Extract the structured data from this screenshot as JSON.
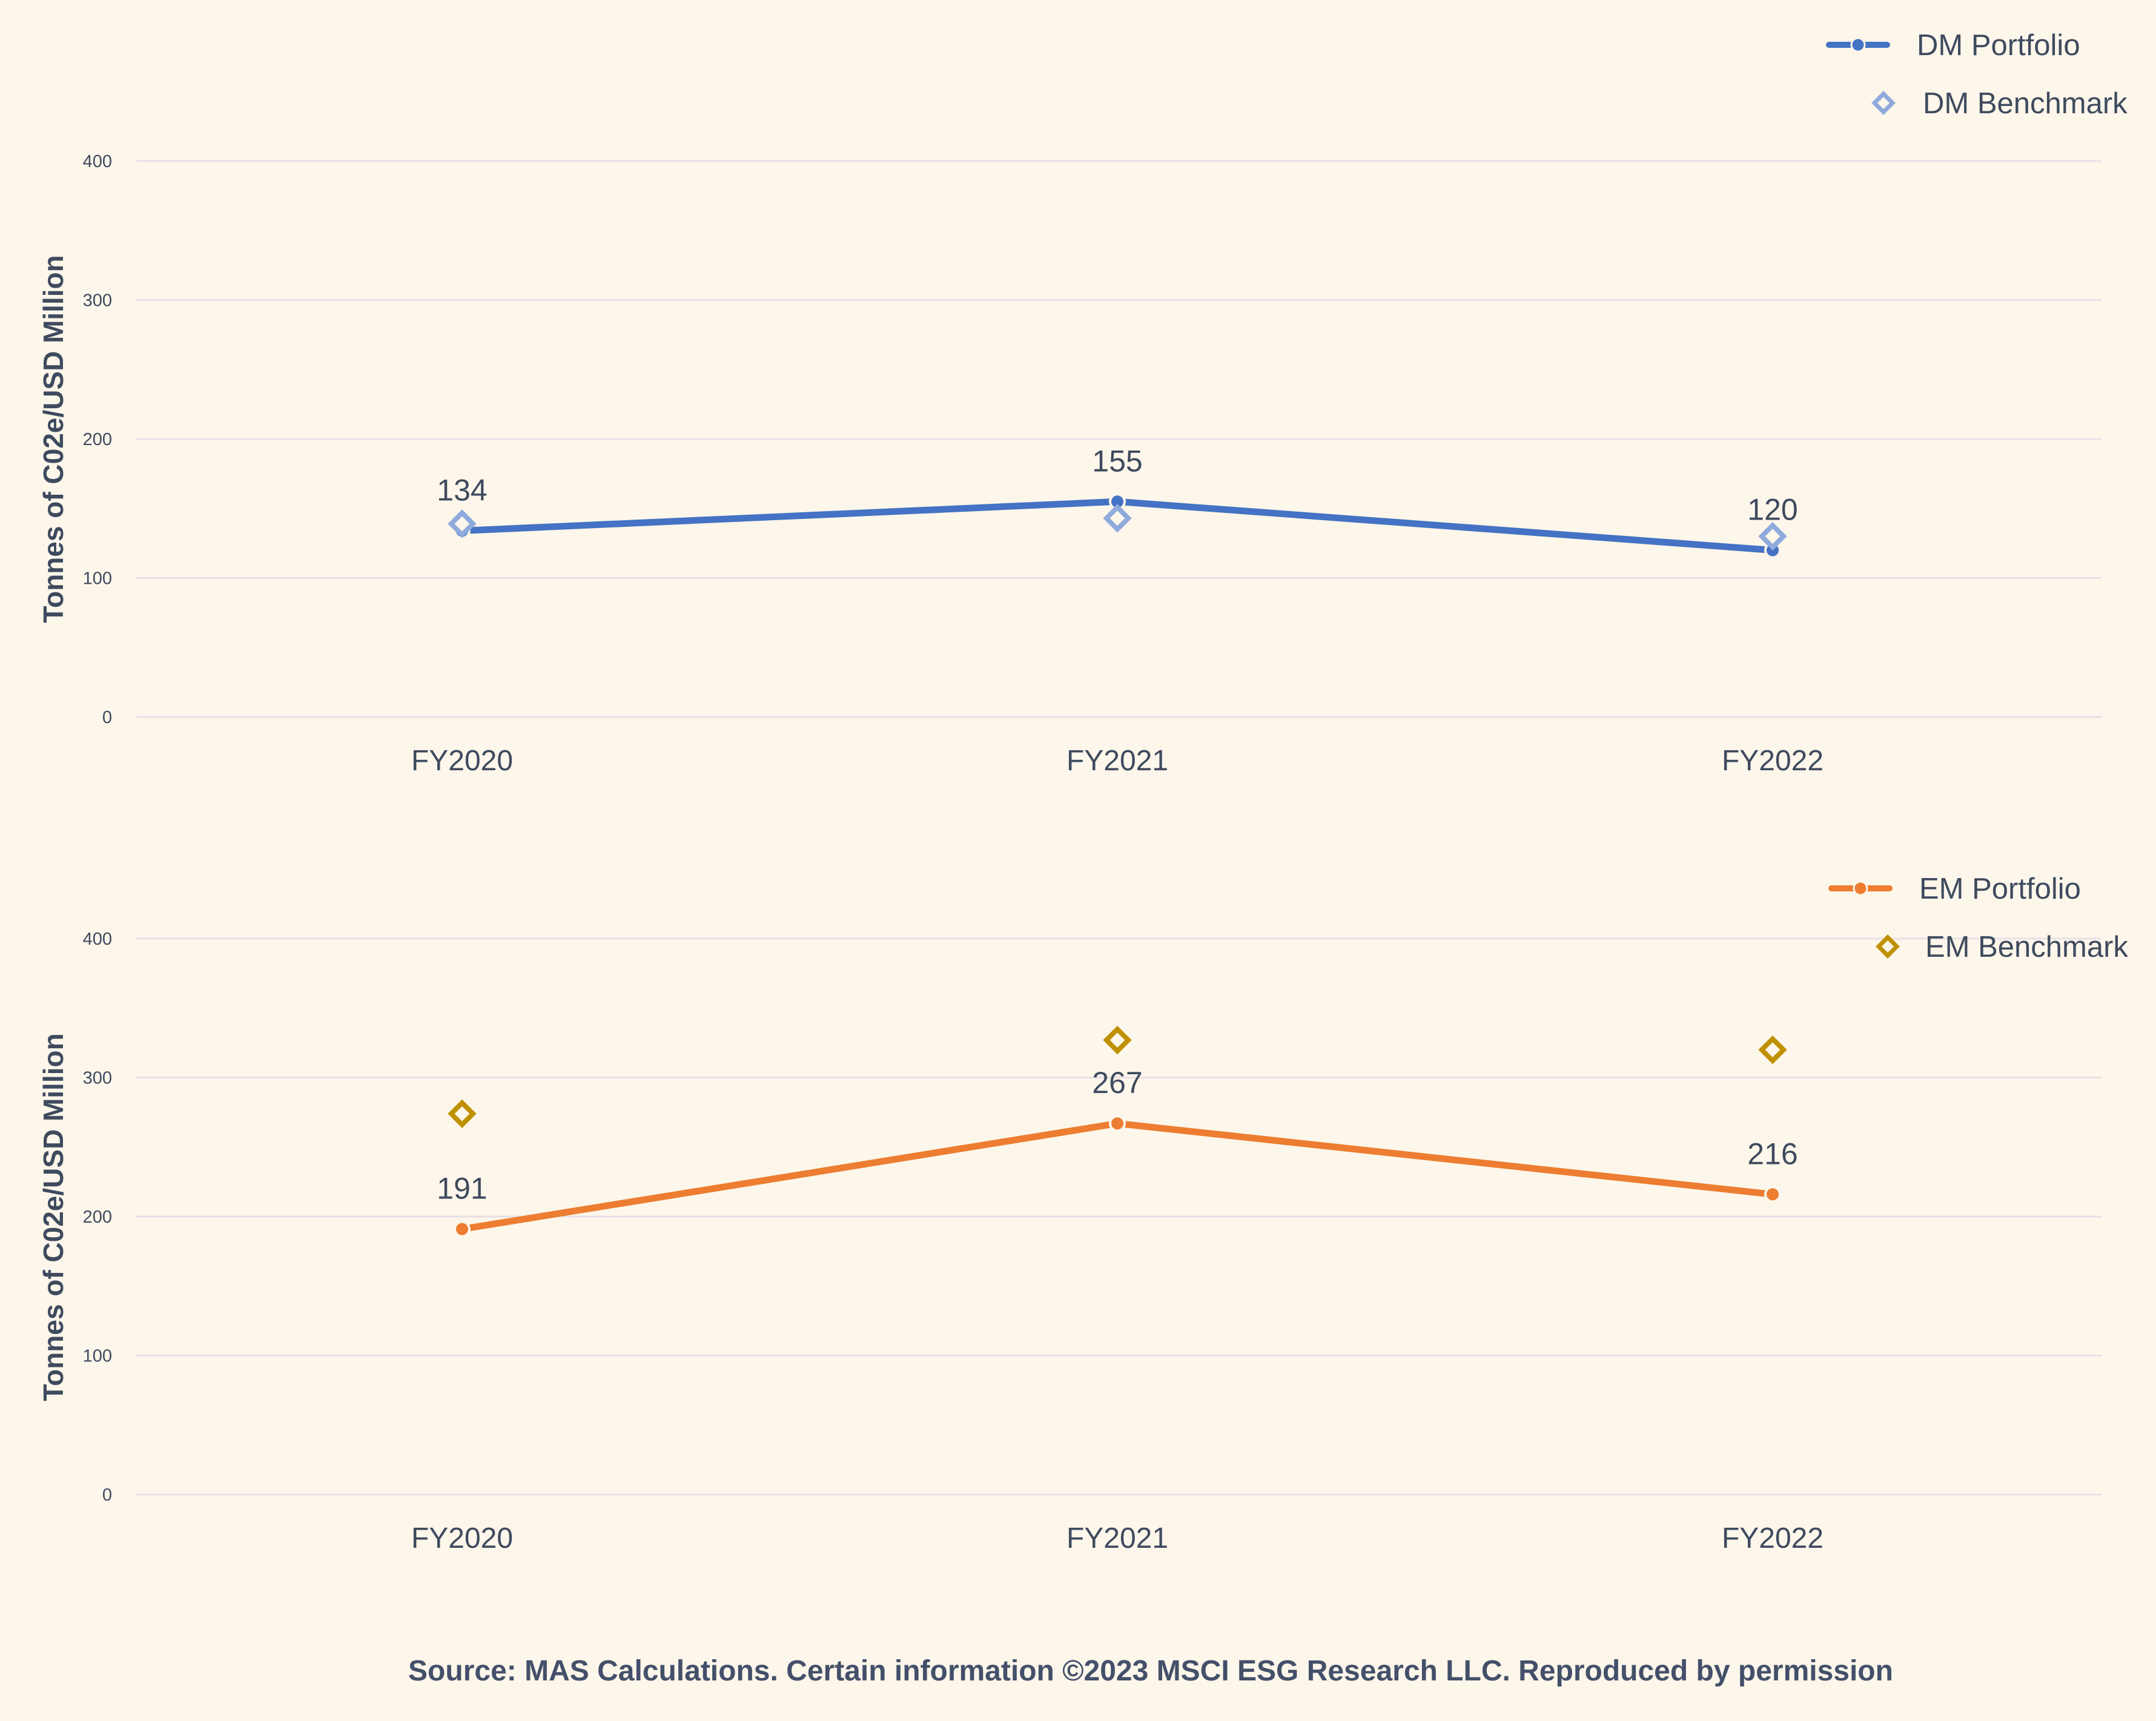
{
  "source_note": "Source: MAS Calculations. Certain information ©2023 MSCI ESG Research LLC. Reproduced by permission",
  "colors": {
    "background": "#fdf6ea",
    "grid": "#e8e0e6",
    "text": "#3e4a5e"
  },
  "chart_data": [
    {
      "type": "line",
      "title": "",
      "xlabel": "",
      "ylabel": "Tonnes of C02e/USD Million",
      "categories": [
        "FY2020",
        "FY2021",
        "FY2022"
      ],
      "yticks": [
        "0",
        "100",
        "200",
        "300",
        "400"
      ],
      "ylim": [
        0,
        400
      ],
      "grid": true,
      "legend_position": "top-right",
      "series": [
        {
          "name": "DM Portfolio",
          "style": "line",
          "color": "#4472c4",
          "values": [
            134,
            155,
            120
          ],
          "labels": [
            "134",
            "155",
            "120"
          ]
        },
        {
          "name": "DM Benchmark",
          "style": "marker",
          "color": "#8faadc",
          "values": [
            139,
            143,
            130
          ],
          "labels": []
        }
      ]
    },
    {
      "type": "line",
      "title": "",
      "xlabel": "",
      "ylabel": "Tonnes  of C02e/USD Million",
      "categories": [
        "FY2020",
        "FY2021",
        "FY2022"
      ],
      "yticks": [
        "0",
        "100",
        "200",
        "300",
        "400"
      ],
      "ylim": [
        0,
        400
      ],
      "grid": true,
      "legend_position": "top-right",
      "series": [
        {
          "name": "EM Portfolio",
          "style": "line",
          "color": "#ed7d31",
          "values": [
            191,
            267,
            216
          ],
          "labels": [
            "191",
            "267",
            "216"
          ]
        },
        {
          "name": "EM Benchmark",
          "style": "marker",
          "color": "#bf9000",
          "values": [
            274,
            327,
            320
          ],
          "labels": []
        }
      ]
    }
  ]
}
